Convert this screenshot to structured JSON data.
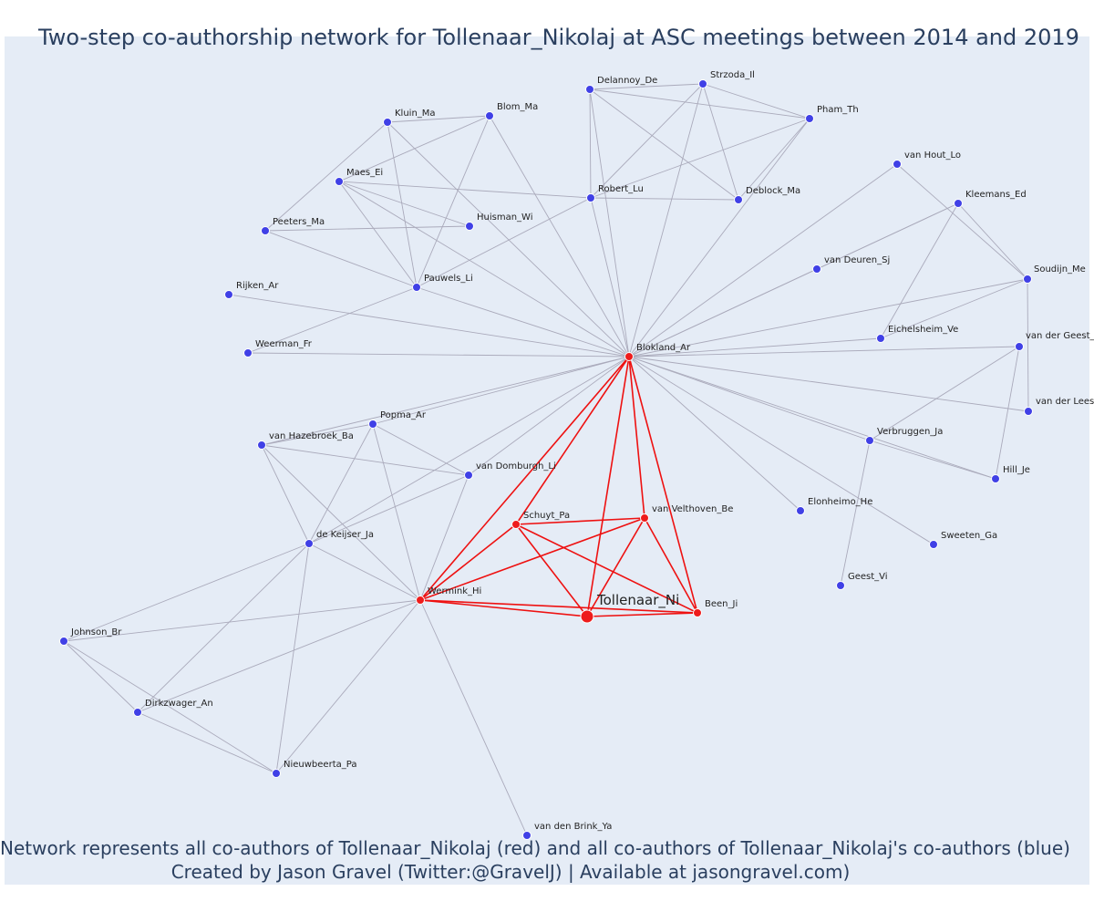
{
  "title": "Two-step co-authorship network for Tollenaar_Nikolaj at ASC meetings between 2014 and 2019",
  "footer": {
    "line1": "Network represents all co-authors of Tollenaar_Nikolaj (red) and all co-authors of Tollenaar_Nikolaj's co-authors (blue)",
    "line2": "Created by Jason Gravel (Twitter:@GravelJ) | Available at jasongravel.com)"
  },
  "colors": {
    "background": "#e5ecf6",
    "blue_node": "#4040e6",
    "red_node": "#ee1c1c",
    "grey_edge": "#aaaabb",
    "red_edge": "#ee1111",
    "text": "#2a3f5f"
  },
  "chart_data": {
    "type": "network",
    "focal": "Tollenaar_Ni",
    "nodes": [
      {
        "id": "Tollenaar_Ni",
        "group": "focal"
      },
      {
        "id": "Blokland_Ar",
        "group": "coauthor"
      },
      {
        "id": "Schuyt_Pa",
        "group": "coauthor"
      },
      {
        "id": "van Velthoven_Be",
        "group": "coauthor"
      },
      {
        "id": "Wermink_Hi",
        "group": "coauthor"
      },
      {
        "id": "Been_Ji",
        "group": "coauthor"
      },
      {
        "id": "Delannoy_De",
        "group": "second"
      },
      {
        "id": "Strzoda_Il",
        "group": "second"
      },
      {
        "id": "Pham_Th",
        "group": "second"
      },
      {
        "id": "Kluin_Ma",
        "group": "second"
      },
      {
        "id": "Blom_Ma",
        "group": "second"
      },
      {
        "id": "Maes_Ei",
        "group": "second"
      },
      {
        "id": "Robert_Lu",
        "group": "second"
      },
      {
        "id": "Deblock_Ma",
        "group": "second"
      },
      {
        "id": "van Hout_Lo",
        "group": "second"
      },
      {
        "id": "Kleemans_Ed",
        "group": "second"
      },
      {
        "id": "Peeters_Ma",
        "group": "second"
      },
      {
        "id": "Huisman_Wi",
        "group": "second"
      },
      {
        "id": "van Deuren_Sj",
        "group": "second"
      },
      {
        "id": "Soudijn_Me",
        "group": "second"
      },
      {
        "id": "Pauwels_Li",
        "group": "second"
      },
      {
        "id": "Rijken_Ar",
        "group": "second"
      },
      {
        "id": "Eichelsheim_Ve",
        "group": "second"
      },
      {
        "id": "van der Geest_",
        "group": "second"
      },
      {
        "id": "Weerman_Fr",
        "group": "second"
      },
      {
        "id": "van der Lees",
        "group": "second"
      },
      {
        "id": "Popma_Ar",
        "group": "second"
      },
      {
        "id": "van Hazebroek_Ba",
        "group": "second"
      },
      {
        "id": "Verbruggen_Ja",
        "group": "second"
      },
      {
        "id": "van Domburgh_Li",
        "group": "second"
      },
      {
        "id": "Hill_Je",
        "group": "second"
      },
      {
        "id": "Elonheimo_He",
        "group": "second"
      },
      {
        "id": "de Keijser_Ja",
        "group": "second"
      },
      {
        "id": "Sweeten_Ga",
        "group": "second"
      },
      {
        "id": "Geest_Vi",
        "group": "second"
      },
      {
        "id": "Johnson_Br",
        "group": "second"
      },
      {
        "id": "Dirkzwager_An",
        "group": "second"
      },
      {
        "id": "Nieuwbeerta_Pa",
        "group": "second"
      },
      {
        "id": "van den Brink_Ya",
        "group": "second"
      }
    ],
    "edges": [
      [
        "Blokland_Ar",
        "Schuyt_Pa",
        "red"
      ],
      [
        "Blokland_Ar",
        "Wermink_Hi",
        "red"
      ],
      [
        "Blokland_Ar",
        "Tollenaar_Ni",
        "red"
      ],
      [
        "Blokland_Ar",
        "Been_Ji",
        "red"
      ],
      [
        "Blokland_Ar",
        "van Velthoven_Be",
        "red"
      ],
      [
        "Schuyt_Pa",
        "van Velthoven_Be",
        "red"
      ],
      [
        "Schuyt_Pa",
        "Wermink_Hi",
        "red"
      ],
      [
        "Schuyt_Pa",
        "Tollenaar_Ni",
        "red"
      ],
      [
        "Schuyt_Pa",
        "Been_Ji",
        "red"
      ],
      [
        "van Velthoven_Be",
        "Wermink_Hi",
        "red"
      ],
      [
        "van Velthoven_Be",
        "Tollenaar_Ni",
        "red"
      ],
      [
        "van Velthoven_Be",
        "Been_Ji",
        "red"
      ],
      [
        "Wermink_Hi",
        "Tollenaar_Ni",
        "red"
      ],
      [
        "Wermink_Hi",
        "Been_Ji",
        "red"
      ],
      [
        "Tollenaar_Ni",
        "Been_Ji",
        "red"
      ],
      [
        "Blokland_Ar",
        "Delannoy_De",
        "grey"
      ],
      [
        "Blokland_Ar",
        "Strzoda_Il",
        "grey"
      ],
      [
        "Blokland_Ar",
        "Pham_Th",
        "grey"
      ],
      [
        "Blokland_Ar",
        "Kluin_Ma",
        "grey"
      ],
      [
        "Blokland_Ar",
        "Blom_Ma",
        "grey"
      ],
      [
        "Blokland_Ar",
        "Maes_Ei",
        "grey"
      ],
      [
        "Blokland_Ar",
        "Robert_Lu",
        "grey"
      ],
      [
        "Blokland_Ar",
        "van Hout_Lo",
        "grey"
      ],
      [
        "Blokland_Ar",
        "Kleemans_Ed",
        "grey"
      ],
      [
        "Blokland_Ar",
        "van Deuren_Sj",
        "grey"
      ],
      [
        "Blokland_Ar",
        "Soudijn_Me",
        "grey"
      ],
      [
        "Blokland_Ar",
        "Pauwels_Li",
        "grey"
      ],
      [
        "Blokland_Ar",
        "Rijken_Ar",
        "grey"
      ],
      [
        "Blokland_Ar",
        "Eichelsheim_Ve",
        "grey"
      ],
      [
        "Blokland_Ar",
        "van der Geest_",
        "grey"
      ],
      [
        "Blokland_Ar",
        "Weerman_Fr",
        "grey"
      ],
      [
        "Blokland_Ar",
        "van der Lees",
        "grey"
      ],
      [
        "Blokland_Ar",
        "Popma_Ar",
        "grey"
      ],
      [
        "Blokland_Ar",
        "van Hazebroek_Ba",
        "grey"
      ],
      [
        "Blokland_Ar",
        "Verbruggen_Ja",
        "grey"
      ],
      [
        "Blokland_Ar",
        "van Domburgh_Li",
        "grey"
      ],
      [
        "Blokland_Ar",
        "Hill_Je",
        "grey"
      ],
      [
        "Blokland_Ar",
        "Elonheimo_He",
        "grey"
      ],
      [
        "Blokland_Ar",
        "de Keijser_Ja",
        "grey"
      ],
      [
        "Blokland_Ar",
        "Sweeten_Ga",
        "grey"
      ],
      [
        "Delannoy_De",
        "Strzoda_Il",
        "grey"
      ],
      [
        "Delannoy_De",
        "Pham_Th",
        "grey"
      ],
      [
        "Delannoy_De",
        "Robert_Lu",
        "grey"
      ],
      [
        "Delannoy_De",
        "Deblock_Ma",
        "grey"
      ],
      [
        "Strzoda_Il",
        "Pham_Th",
        "grey"
      ],
      [
        "Strzoda_Il",
        "Robert_Lu",
        "grey"
      ],
      [
        "Strzoda_Il",
        "Deblock_Ma",
        "grey"
      ],
      [
        "Pham_Th",
        "Robert_Lu",
        "grey"
      ],
      [
        "Pham_Th",
        "Deblock_Ma",
        "grey"
      ],
      [
        "Robert_Lu",
        "Deblock_Ma",
        "grey"
      ],
      [
        "Robert_Lu",
        "Maes_Ei",
        "grey"
      ],
      [
        "Robert_Lu",
        "Pauwels_Li",
        "grey"
      ],
      [
        "Kluin_Ma",
        "Blom_Ma",
        "grey"
      ],
      [
        "Kluin_Ma",
        "Peeters_Ma",
        "grey"
      ],
      [
        "Kluin_Ma",
        "Pauwels_Li",
        "grey"
      ],
      [
        "Blom_Ma",
        "Maes_Ei",
        "grey"
      ],
      [
        "Blom_Ma",
        "Pauwels_Li",
        "grey"
      ],
      [
        "Maes_Ei",
        "Pauwels_Li",
        "grey"
      ],
      [
        "Maes_Ei",
        "Huisman_Wi",
        "grey"
      ],
      [
        "Peeters_Ma",
        "Huisman_Wi",
        "grey"
      ],
      [
        "Peeters_Ma",
        "Pauwels_Li",
        "grey"
      ],
      [
        "Pauwels_Li",
        "Weerman_Fr",
        "grey"
      ],
      [
        "van Hout_Lo",
        "Soudijn_Me",
        "grey"
      ],
      [
        "Kleemans_Ed",
        "Soudijn_Me",
        "grey"
      ],
      [
        "Kleemans_Ed",
        "Eichelsheim_Ve",
        "grey"
      ],
      [
        "Kleemans_Ed",
        "van Deuren_Sj",
        "grey"
      ],
      [
        "Soudijn_Me",
        "Eichelsheim_Ve",
        "grey"
      ],
      [
        "Soudijn_Me",
        "van der Lees",
        "grey"
      ],
      [
        "van der Geest_",
        "Verbruggen_Ja",
        "grey"
      ],
      [
        "van der Geest_",
        "Hill_Je",
        "grey"
      ],
      [
        "Verbruggen_Ja",
        "Hill_Je",
        "grey"
      ],
      [
        "Verbruggen_Ja",
        "Geest_Vi",
        "grey"
      ],
      [
        "Popma_Ar",
        "van Hazebroek_Ba",
        "grey"
      ],
      [
        "Popma_Ar",
        "van Domburgh_Li",
        "grey"
      ],
      [
        "Popma_Ar",
        "de Keijser_Ja",
        "grey"
      ],
      [
        "Popma_Ar",
        "Wermink_Hi",
        "grey"
      ],
      [
        "van Hazebroek_Ba",
        "van Domburgh_Li",
        "grey"
      ],
      [
        "van Hazebroek_Ba",
        "de Keijser_Ja",
        "grey"
      ],
      [
        "van Hazebroek_Ba",
        "Wermink_Hi",
        "grey"
      ],
      [
        "van Domburgh_Li",
        "de Keijser_Ja",
        "grey"
      ],
      [
        "van Domburgh_Li",
        "Wermink_Hi",
        "grey"
      ],
      [
        "de Keijser_Ja",
        "Wermink_Hi",
        "grey"
      ],
      [
        "de Keijser_Ja",
        "Johnson_Br",
        "grey"
      ],
      [
        "de Keijser_Ja",
        "Dirkzwager_An",
        "grey"
      ],
      [
        "de Keijser_Ja",
        "Nieuwbeerta_Pa",
        "grey"
      ],
      [
        "Wermink_Hi",
        "Johnson_Br",
        "grey"
      ],
      [
        "Wermink_Hi",
        "Dirkzwager_An",
        "grey"
      ],
      [
        "Wermink_Hi",
        "Nieuwbeerta_Pa",
        "grey"
      ],
      [
        "Wermink_Hi",
        "van den Brink_Ya",
        "grey"
      ],
      [
        "Johnson_Br",
        "Dirkzwager_An",
        "grey"
      ],
      [
        "Johnson_Br",
        "Nieuwbeerta_Pa",
        "grey"
      ],
      [
        "Dirkzwager_An",
        "Nieuwbeerta_Pa",
        "grey"
      ]
    ]
  }
}
